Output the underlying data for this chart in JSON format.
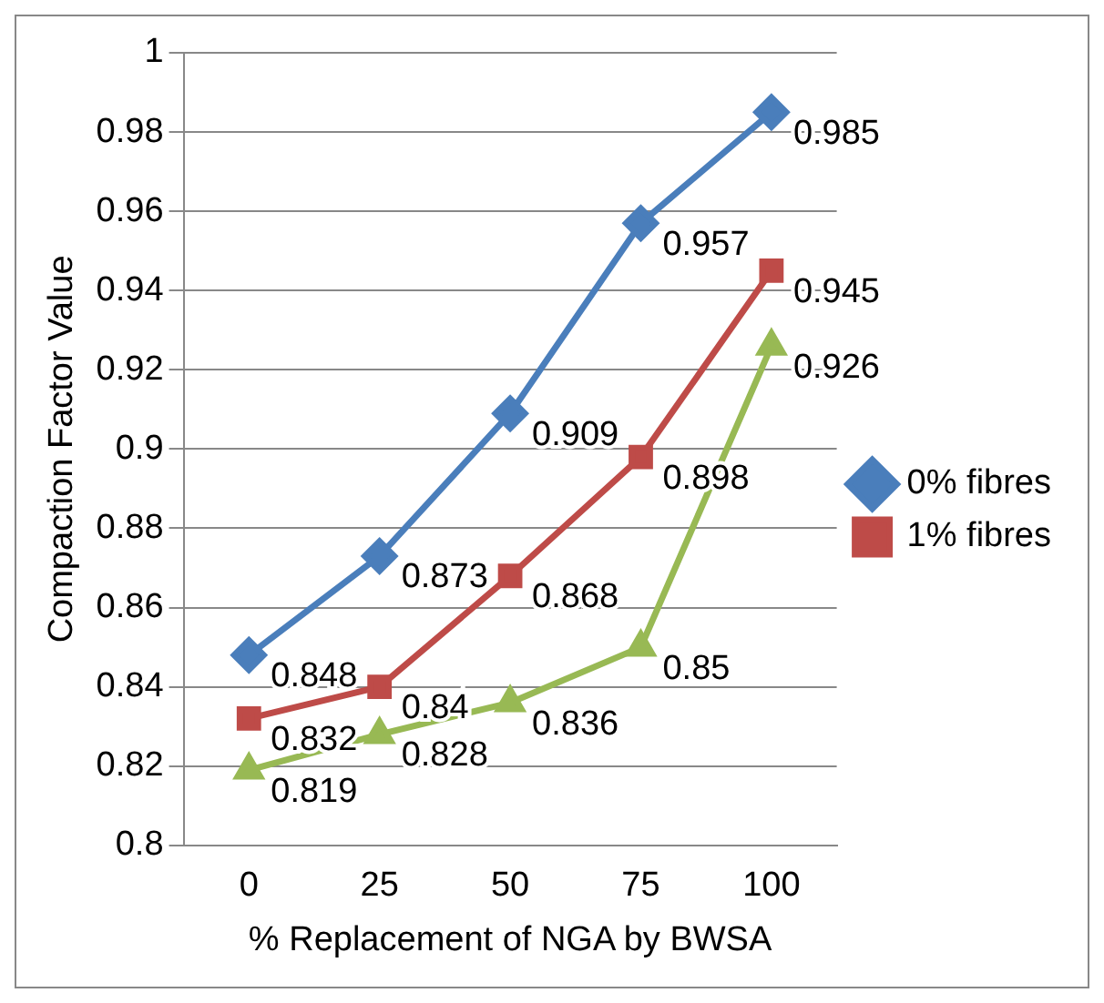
{
  "chart_data": {
    "type": "line",
    "xlabel": "% Replacement of NGA by BWSA",
    "ylabel": "Compaction Factor Value",
    "categories": [
      "0",
      "25",
      "50",
      "75",
      "100"
    ],
    "series": [
      {
        "name": "0% fibres",
        "color": "#4a7ebb",
        "marker": "diamond",
        "values": [
          0.848,
          0.873,
          0.909,
          0.957,
          0.985
        ]
      },
      {
        "name": "1% fibres",
        "color": "#be4b48",
        "marker": "square",
        "values": [
          0.832,
          0.84,
          0.868,
          0.898,
          0.945
        ]
      },
      {
        "color": "#98b954",
        "marker": "triangle",
        "values": [
          0.819,
          0.828,
          0.836,
          0.85,
          0.926
        ]
      }
    ],
    "ylim": [
      0.8,
      1
    ],
    "yticks": [
      0.8,
      0.82,
      0.84,
      0.86,
      0.88,
      0.9,
      0.92,
      0.94,
      0.96,
      0.98,
      1
    ],
    "grid": "y",
    "legend": "right",
    "data_labels": true,
    "line_style": "solid"
  }
}
